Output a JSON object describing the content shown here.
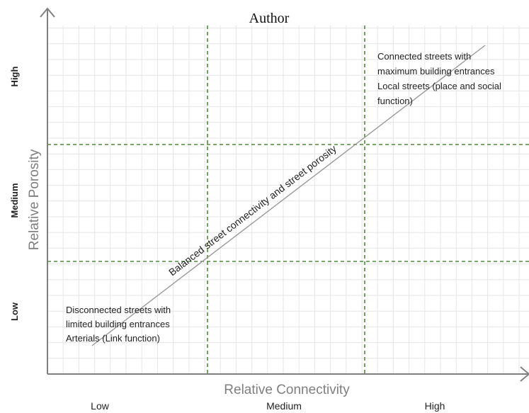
{
  "header": {
    "caption_fragment": "Author"
  },
  "axes": {
    "x_label": "Relative Connectivity",
    "y_label": "Relative Porosity",
    "x_levels": [
      "Low",
      "Medium",
      "High"
    ],
    "y_levels": [
      "Low",
      "Medium",
      "High"
    ]
  },
  "annotations": {
    "top_right": [
      "Connected streets with",
      "maximum building entrances",
      "Local streets (place and social",
      "function)"
    ],
    "bottom_left": [
      "Disconnected streets with",
      "limited building entrances",
      "Arterials (Link function)"
    ],
    "diagonal": "Balanced street connectivity and street porosity"
  },
  "colors": {
    "grid_minor": "#e6e6e6",
    "grid_major": "#4f8a3a",
    "axis": "#7f7f7f",
    "axis_title": "#7f7f7f",
    "text": "#222222"
  }
}
